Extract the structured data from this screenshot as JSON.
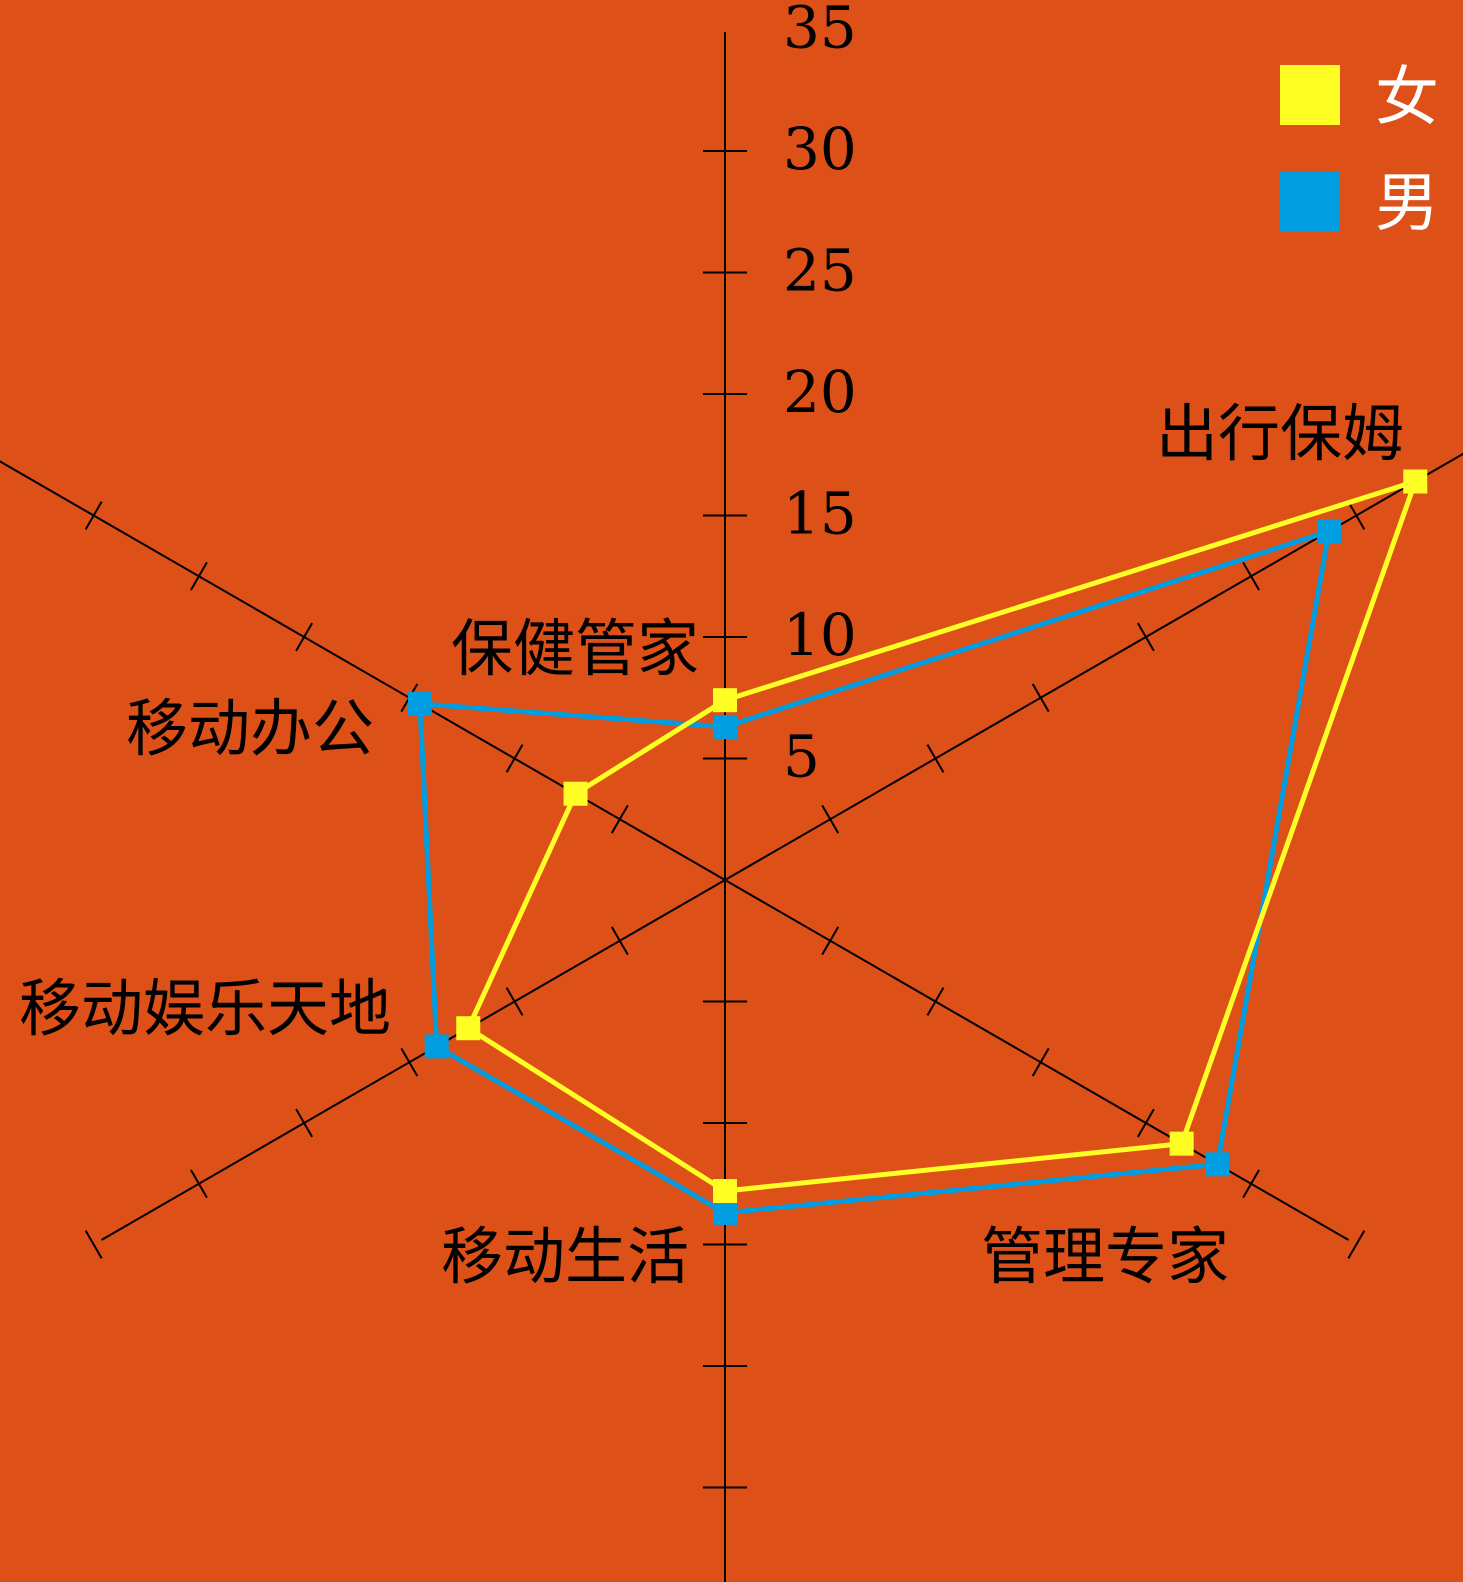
{
  "chart_data": {
    "type": "radar",
    "title": "",
    "categories": [
      "保健管家",
      "出行保姆",
      "管理专家",
      "移动生活",
      "移动娱乐天地",
      "移动办公"
    ],
    "series": [
      {
        "name": "女",
        "color": "#ffff26",
        "values": [
          7.4,
          32.8,
          21.7,
          12.8,
          12.2,
          7.1
        ]
      },
      {
        "name": "男",
        "color": "#009de0",
        "values": [
          6.3,
          28.7,
          23.4,
          13.7,
          13.7,
          14.5
        ]
      }
    ],
    "radial_ticks": [
      5,
      10,
      15,
      20,
      25,
      30,
      35
    ],
    "rlim": [
      0,
      35
    ],
    "legend": {
      "position": "top-right"
    },
    "colors": {
      "background": "#dd5018",
      "axis": "#000000"
    }
  }
}
